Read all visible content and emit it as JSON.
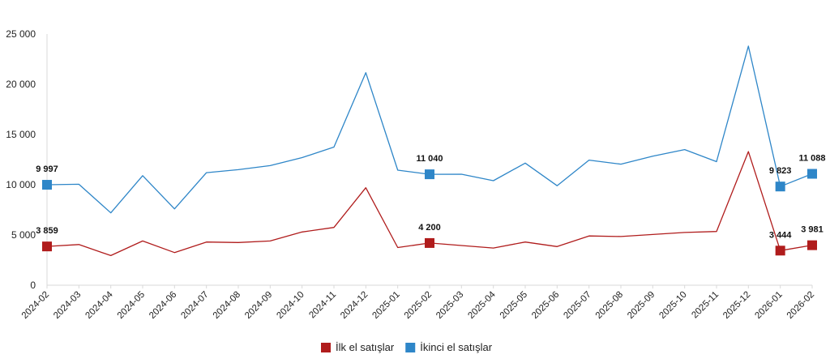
{
  "chart_data": {
    "type": "line",
    "title": "",
    "xlabel": "",
    "ylabel": "",
    "ylim": [
      0,
      25000
    ],
    "yticks": [
      0,
      5000,
      10000,
      15000,
      20000,
      25000
    ],
    "ytick_labels": [
      "0",
      "5 000",
      "10 000",
      "15 000",
      "20 000",
      "25 000"
    ],
    "grid": false,
    "legend_position": "bottom-center",
    "x": [
      "2024-02",
      "2024-03",
      "2024-04",
      "2024-05",
      "2024-06",
      "2024-07",
      "2024-08",
      "2024-09",
      "2024-10",
      "2024-11",
      "2024-12",
      "2025-01",
      "2025-02",
      "2025-03",
      "2025-04",
      "2025-05",
      "2025-06",
      "2025-07",
      "2025-08",
      "2025-09",
      "2025-10",
      "2025-11",
      "2025-12",
      "2026-01",
      "2026-02"
    ],
    "series": [
      {
        "name": "İlk el satışlar",
        "color": "#b01c1c",
        "values": [
          3859,
          4050,
          2950,
          4400,
          3250,
          4300,
          4250,
          4400,
          5300,
          5750,
          9700,
          3750,
          4200,
          3950,
          3700,
          4300,
          3850,
          4900,
          4850,
          5050,
          5250,
          5350,
          13300,
          3444,
          3981
        ]
      },
      {
        "name": "İkinci el satışlar",
        "color": "#2e86c8",
        "values": [
          9997,
          10050,
          7200,
          10900,
          7600,
          11200,
          11500,
          11900,
          12700,
          13750,
          21150,
          11450,
          11040,
          11050,
          10400,
          12150,
          9900,
          12450,
          12050,
          12850,
          13500,
          12300,
          23800,
          9823,
          11088
        ]
      }
    ],
    "highlighted_points": [
      {
        "series": 0,
        "index": 0,
        "label": "3 859"
      },
      {
        "series": 0,
        "index": 12,
        "label": "4 200"
      },
      {
        "series": 0,
        "index": 23,
        "label": "3 444"
      },
      {
        "series": 0,
        "index": 24,
        "label": "3 981"
      },
      {
        "series": 1,
        "index": 0,
        "label": "9 997"
      },
      {
        "series": 1,
        "index": 12,
        "label": "11 040"
      },
      {
        "series": 1,
        "index": 23,
        "label": "9 823"
      },
      {
        "series": 1,
        "index": 24,
        "label": "11 088"
      }
    ]
  }
}
